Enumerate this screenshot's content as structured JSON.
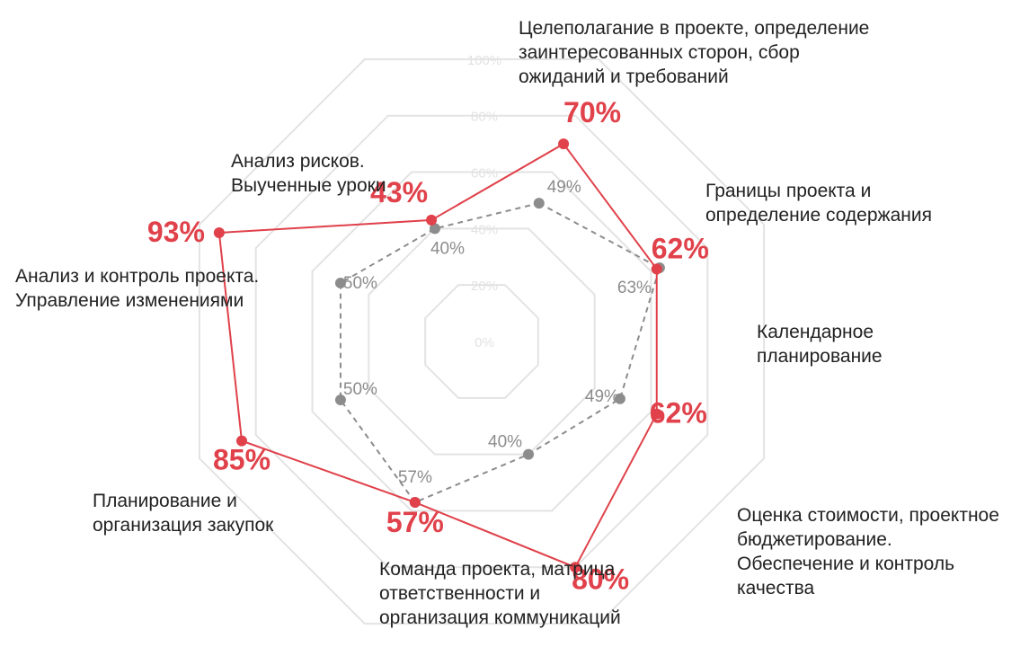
{
  "chart_data": {
    "type": "radar",
    "ticks": [
      "0%",
      "20%",
      "40%",
      "60%",
      "80%",
      "100%"
    ],
    "max": 100,
    "categories": [
      {
        "lines": [
          "Целеполагание в проекте, определение",
          "заинтересованных сторон, сбор",
          "ожиданий и требований"
        ]
      },
      {
        "lines": [
          "Границы проекта и",
          "определение содержания"
        ]
      },
      {
        "lines": [
          "Календарное",
          "планирование"
        ]
      },
      {
        "lines": [
          "Оценка стоимости, проектное",
          "бюджетирование.",
          "Обеспечение и контроль",
          "качества"
        ]
      },
      {
        "lines": [
          "Команда проекта, матрица",
          "ответственности и",
          "организация коммуникаций"
        ]
      },
      {
        "lines": [
          "Планирование и",
          "организация закупок"
        ]
      },
      {
        "lines": [
          "Анализ и контроль проекта.",
          "Управление изменениями"
        ]
      },
      {
        "lines": [
          "Анализ рисков.",
          "Выученные уроки"
        ]
      }
    ],
    "series": [
      {
        "values": [
          70,
          62,
          62,
          80,
          57,
          85,
          93,
          43
        ],
        "labels": [
          "70%",
          "62%",
          "62%",
          "80%",
          "57%",
          "85%",
          "93%",
          "43%"
        ],
        "color": "#e0414a",
        "style": "solid"
      },
      {
        "values": [
          49,
          63,
          49,
          40,
          57,
          50,
          50,
          40
        ],
        "labels": [
          "49%",
          "63%",
          "49%",
          "40%",
          "57%",
          "50%",
          "50%",
          "40%"
        ],
        "color": "#8c8c8c",
        "style": "dashed"
      }
    ],
    "grid_color": "#e3e3e3"
  }
}
